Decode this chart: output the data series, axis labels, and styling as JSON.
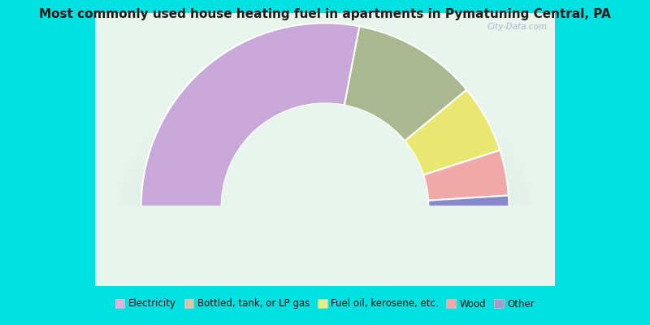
{
  "title": "Most commonly used house heating fuel in apartments in Pymatuning Central, PA",
  "categories": [
    "Electricity",
    "Bottled, tank, or LP gas",
    "Fuel oil, kerosene, etc.",
    "Wood",
    "Other"
  ],
  "values": [
    2,
    22,
    12,
    8,
    56
  ],
  "segment_order": [
    4,
    1,
    2,
    3,
    0
  ],
  "colors_ordered": [
    "#c8a8d8",
    "#aab890",
    "#e8e870",
    "#f0a8a8",
    "#8888cc"
  ],
  "legend_colors": [
    "#e0b0e0",
    "#d0c8a8",
    "#ecea80",
    "#f0a8a8",
    "#a898cc"
  ],
  "outer_background": "#00e0e0",
  "chart_bg_color": "#e8f5ec",
  "chart_bg_color2": "#ffffff"
}
